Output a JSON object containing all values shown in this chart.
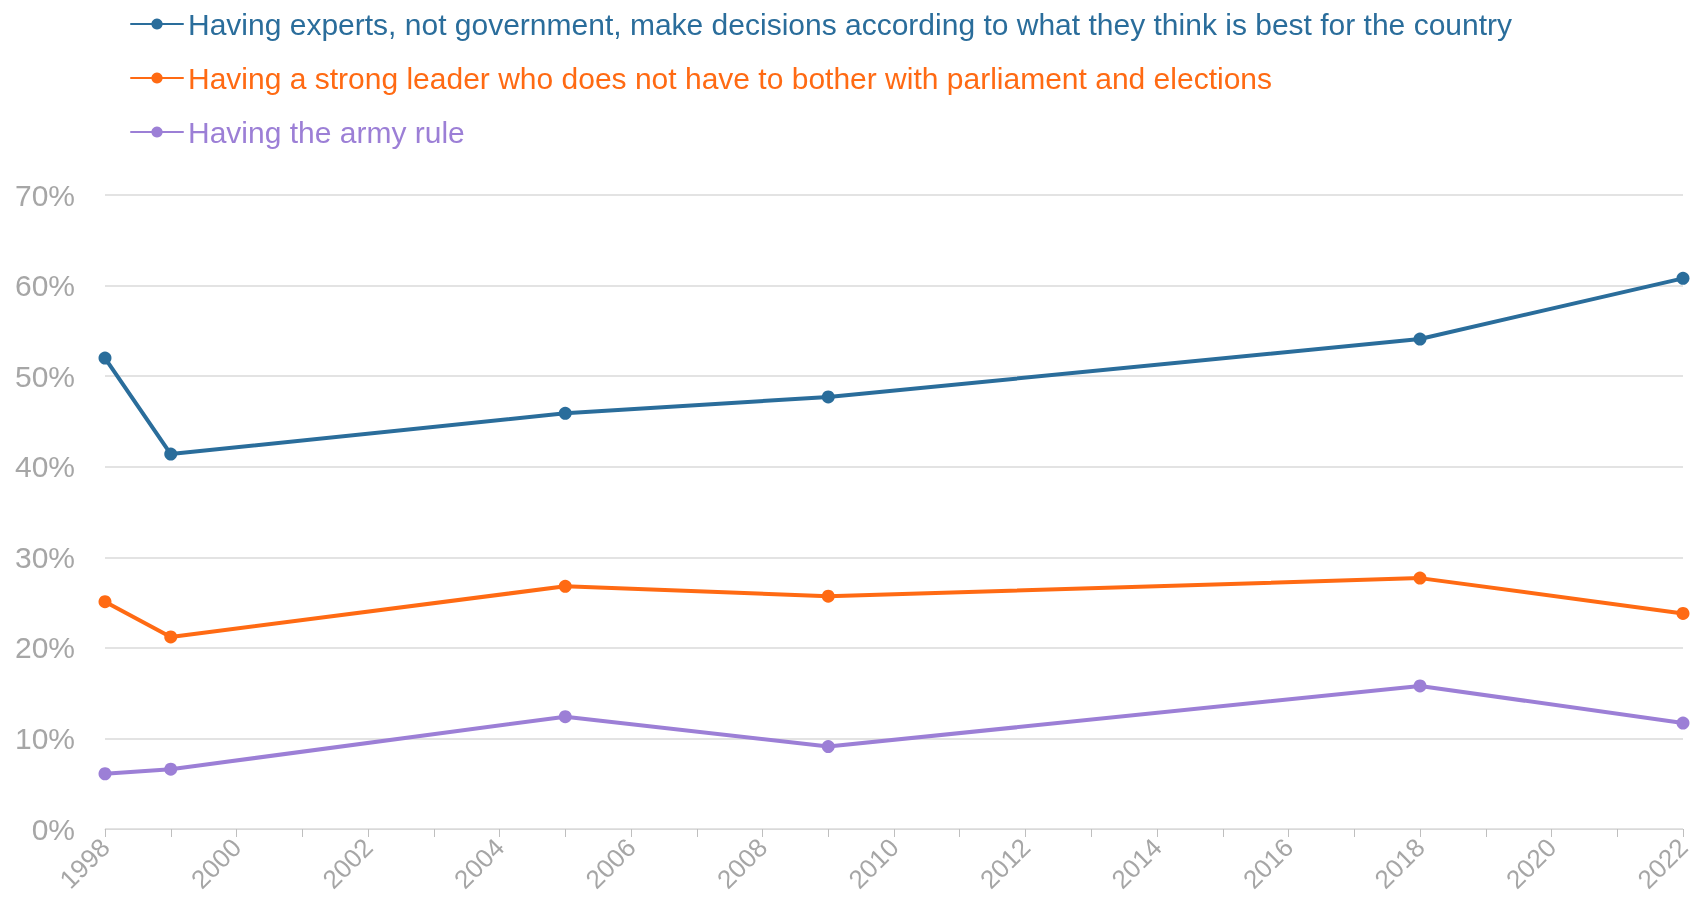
{
  "chart_data": {
    "type": "line",
    "x": [
      1998,
      1999,
      2005,
      2009,
      2018,
      2022
    ],
    "series": [
      {
        "name": "Having experts, not government, make decisions according to what they think is best for the country",
        "color": "#2a6d9b",
        "values": [
          52,
          41.4,
          45.9,
          47.7,
          54.1,
          60.8
        ]
      },
      {
        "name": "Having a strong leader who does not have to bother with parliament and elections",
        "color": "#ff6a13",
        "values": [
          25.1,
          21.2,
          26.8,
          25.7,
          27.7,
          23.8
        ]
      },
      {
        "name": "Having the army rule",
        "color": "#9c7fd6",
        "values": [
          6.1,
          6.6,
          12.4,
          9.1,
          15.8,
          11.7
        ]
      }
    ],
    "xlim": [
      1998,
      2022
    ],
    "xticks": [
      1998,
      {
        "value": 1999,
        "label": null
      },
      2000,
      {
        "value": 2001,
        "label": null
      },
      2002,
      {
        "value": 2003,
        "label": null
      },
      2004,
      {
        "value": 2005,
        "label": null
      },
      2006,
      {
        "value": 2007,
        "label": null
      },
      2008,
      {
        "value": 2009,
        "label": null
      },
      2010,
      {
        "value": 2011,
        "label": null
      },
      2012,
      {
        "value": 2013,
        "label": null
      },
      2014,
      {
        "value": 2015,
        "label": null
      },
      2016,
      {
        "value": 2017,
        "label": null
      },
      2018,
      {
        "value": 2019,
        "label": null
      },
      2020,
      {
        "value": 2021,
        "label": null
      },
      2022
    ],
    "ylim": [
      0,
      70
    ],
    "yticks": [
      {
        "value": 0,
        "label": "0%"
      },
      {
        "value": 10,
        "label": "10%"
      },
      {
        "value": 20,
        "label": "20%"
      },
      {
        "value": 30,
        "label": "30%"
      },
      {
        "value": 40,
        "label": "40%"
      },
      {
        "value": 50,
        "label": "50%"
      },
      {
        "value": 60,
        "label": "60%"
      },
      {
        "value": 70,
        "label": "70%"
      }
    ],
    "grid": "y",
    "legend": "top left",
    "marker": "circle",
    "line_style": "solid"
  }
}
